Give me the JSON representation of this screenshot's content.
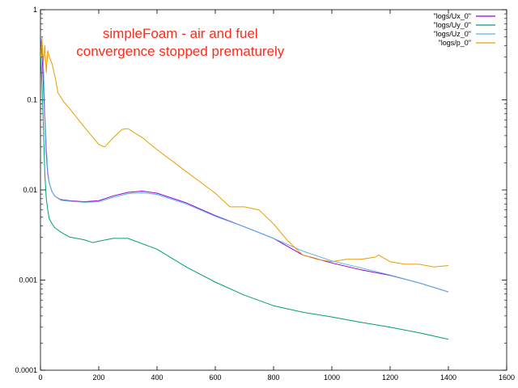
{
  "chart_data": {
    "type": "line",
    "title": "",
    "xlabel": "",
    "ylabel": "",
    "xlim": [
      0,
      1600
    ],
    "ylim": [
      0.0001,
      1
    ],
    "yscale": "log",
    "grid": false,
    "legend_position": "top-right",
    "x_ticks": [
      0,
      200,
      400,
      600,
      800,
      1000,
      1200,
      1400,
      1600
    ],
    "x_tick_labels": [
      "0",
      "200",
      "400",
      "600",
      "800",
      "1000",
      "1200",
      "1400",
      "1600"
    ],
    "y_ticks": [
      0.0001,
      0.001,
      0.01,
      0.1,
      1
    ],
    "y_tick_labels": [
      "0.0001",
      "0.001",
      "0.01",
      "0.1",
      "1"
    ],
    "annotations": [
      {
        "text": "simpleFoam - air and fuel",
        "x": 480,
        "y": 0.55
      },
      {
        "text": "convergence stopped prematurely",
        "x": 480,
        "y": 0.35
      }
    ],
    "series": [
      {
        "name": "\"logs/Ux_0\"",
        "color": "#9400d3",
        "x": [
          1,
          5,
          10,
          15,
          20,
          25,
          30,
          40,
          50,
          70,
          100,
          150,
          200,
          250,
          300,
          350,
          400,
          500,
          600,
          700,
          800,
          900,
          1000,
          1100,
          1200,
          1300,
          1400
        ],
        "y": [
          0.5,
          0.35,
          0.15,
          0.06,
          0.025,
          0.015,
          0.012,
          0.0095,
          0.0085,
          0.0078,
          0.0076,
          0.0074,
          0.0076,
          0.0086,
          0.0094,
          0.0097,
          0.0092,
          0.0072,
          0.0052,
          0.0039,
          0.0029,
          0.0019,
          0.00155,
          0.0013,
          0.00113,
          0.00093,
          0.00074
        ]
      },
      {
        "name": "\"logs/Uy_0\"",
        "color": "#009e73",
        "x": [
          1,
          5,
          10,
          15,
          20,
          25,
          30,
          40,
          50,
          70,
          100,
          150,
          180,
          200,
          250,
          300,
          400,
          500,
          600,
          700,
          800,
          900,
          1000,
          1100,
          1200,
          1300,
          1400
        ],
        "y": [
          0.3,
          0.15,
          0.05,
          0.015,
          0.008,
          0.006,
          0.0048,
          0.0042,
          0.0038,
          0.0034,
          0.003,
          0.0028,
          0.0026,
          0.0027,
          0.0029,
          0.0029,
          0.0022,
          0.0014,
          0.00095,
          0.00068,
          0.00052,
          0.00044,
          0.00039,
          0.00034,
          0.0003,
          0.00026,
          0.00022
        ]
      },
      {
        "name": "\"logs/Uz_0\"",
        "color": "#56b4e9",
        "x": [
          1,
          5,
          10,
          15,
          20,
          25,
          30,
          40,
          50,
          70,
          100,
          150,
          200,
          250,
          300,
          350,
          400,
          500,
          600,
          700,
          800,
          900,
          1000,
          1100,
          1200,
          1300,
          1400
        ],
        "y": [
          0.5,
          0.4,
          0.25,
          0.07,
          0.03,
          0.016,
          0.012,
          0.0095,
          0.0085,
          0.0077,
          0.0075,
          0.0073,
          0.0074,
          0.0083,
          0.0091,
          0.0093,
          0.0089,
          0.007,
          0.0051,
          0.0039,
          0.0029,
          0.0021,
          0.00163,
          0.00137,
          0.00114,
          0.00093,
          0.00074
        ]
      },
      {
        "name": "\"logs/p_0\"",
        "color": "#e69f00",
        "x": [
          1,
          5,
          10,
          15,
          20,
          25,
          30,
          40,
          50,
          60,
          80,
          100,
          150,
          200,
          220,
          250,
          280,
          300,
          350,
          400,
          500,
          600,
          650,
          700,
          750,
          800,
          850,
          900,
          950,
          1000,
          1050,
          1100,
          1150,
          1160,
          1200,
          1250,
          1300,
          1350,
          1400
        ],
        "y": [
          0.3,
          0.5,
          0.25,
          0.4,
          0.2,
          0.35,
          0.3,
          0.25,
          0.18,
          0.12,
          0.095,
          0.08,
          0.05,
          0.032,
          0.03,
          0.038,
          0.047,
          0.048,
          0.038,
          0.028,
          0.016,
          0.0092,
          0.0065,
          0.0065,
          0.006,
          0.0042,
          0.0027,
          0.0019,
          0.0017,
          0.0016,
          0.0017,
          0.0017,
          0.0018,
          0.0019,
          0.0016,
          0.0015,
          0.0015,
          0.0014,
          0.00145
        ]
      }
    ]
  }
}
